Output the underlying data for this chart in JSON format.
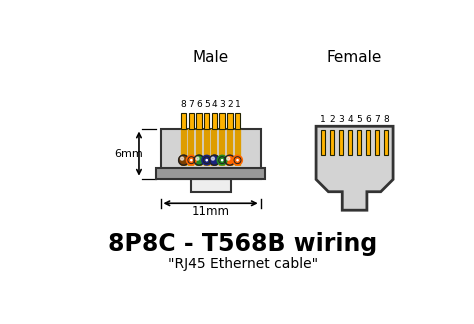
{
  "bg_color": "#ffffff",
  "title_main": "8P8C - T568B wiring",
  "title_sub": "\"RJ45 Ethernet cable\"",
  "male_label": "Male",
  "female_label": "Female",
  "dim_6mm": "6mm",
  "dim_11mm": "11mm",
  "pin_numbers_male": [
    "8",
    "7",
    "6",
    "5",
    "4",
    "3",
    "2",
    "1"
  ],
  "pin_numbers_female": [
    "1",
    "2",
    "3",
    "4",
    "5",
    "6",
    "7",
    "8"
  ],
  "connector_fill": "#D3D3D3",
  "connector_stroke": "#333333",
  "connector_dark": "#999999",
  "pin_color": "#FFB300",
  "pin_dark": "#222200",
  "dot_colors": [
    "#7B3F00",
    "#228B22",
    "#1A237E",
    "#FF6600"
  ],
  "dot_colors_white": [
    "#FFB300",
    "#FFB300",
    "#FFB300",
    "#FFB300"
  ],
  "wire_color": "#FFB300"
}
